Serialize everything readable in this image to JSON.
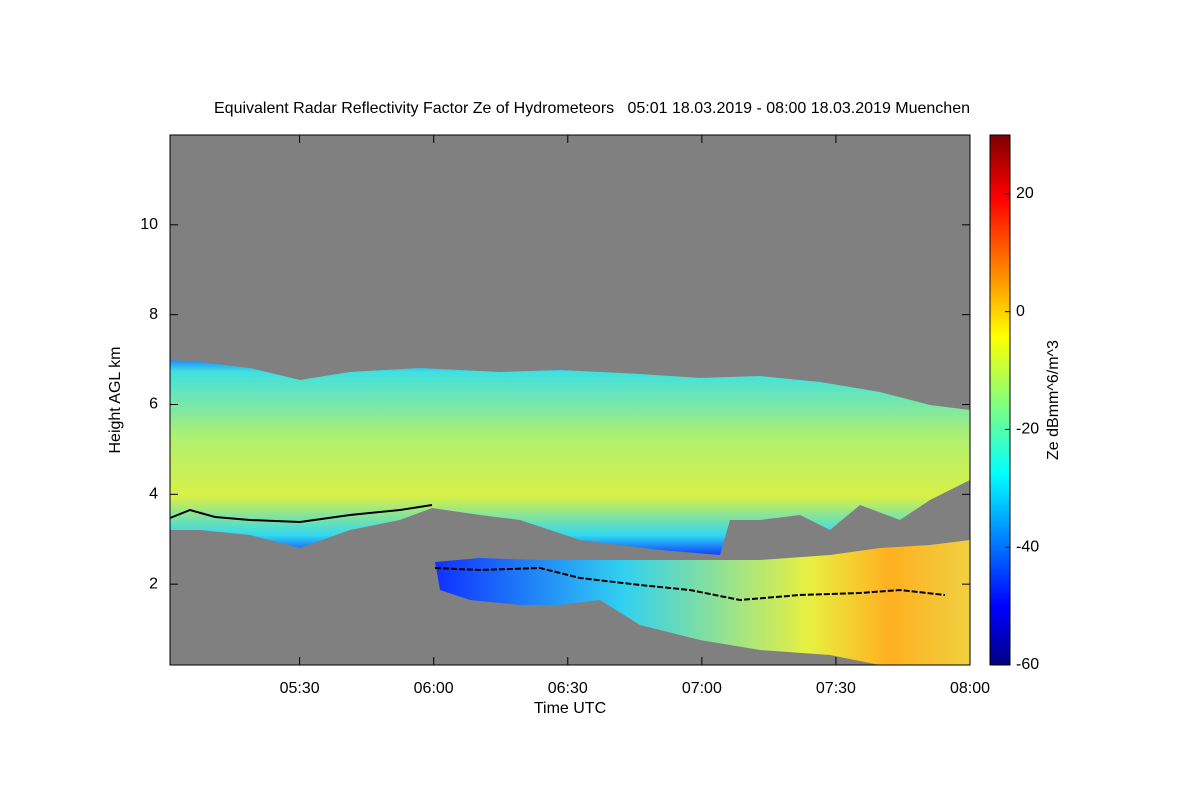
{
  "chart_data": {
    "type": "heatmap",
    "title": "Equivalent Radar Reflectivity Factor Ze of Hydrometeors   05:01 18.03.2019 - 08:00 18.03.2019 Muenchen",
    "x_label": "Time UTC",
    "y_label": "Height AGL km",
    "colorbar_label": "Ze dBmm^6/m^3",
    "xlim": [
      301,
      480
    ],
    "xticks": [
      {
        "value": 330,
        "label": "05:30"
      },
      {
        "value": 360,
        "label": "06:00"
      },
      {
        "value": 390,
        "label": "06:30"
      },
      {
        "value": 420,
        "label": "07:00"
      },
      {
        "value": 450,
        "label": "07:30"
      },
      {
        "value": 480,
        "label": "08:00"
      }
    ],
    "ylim": [
      0.2,
      12
    ],
    "yticks": [
      2,
      4,
      6,
      8,
      10
    ],
    "clim": [
      -60,
      30
    ],
    "cticks": [
      -60,
      -40,
      -20,
      0,
      20
    ],
    "colormap": "jet"
  }
}
